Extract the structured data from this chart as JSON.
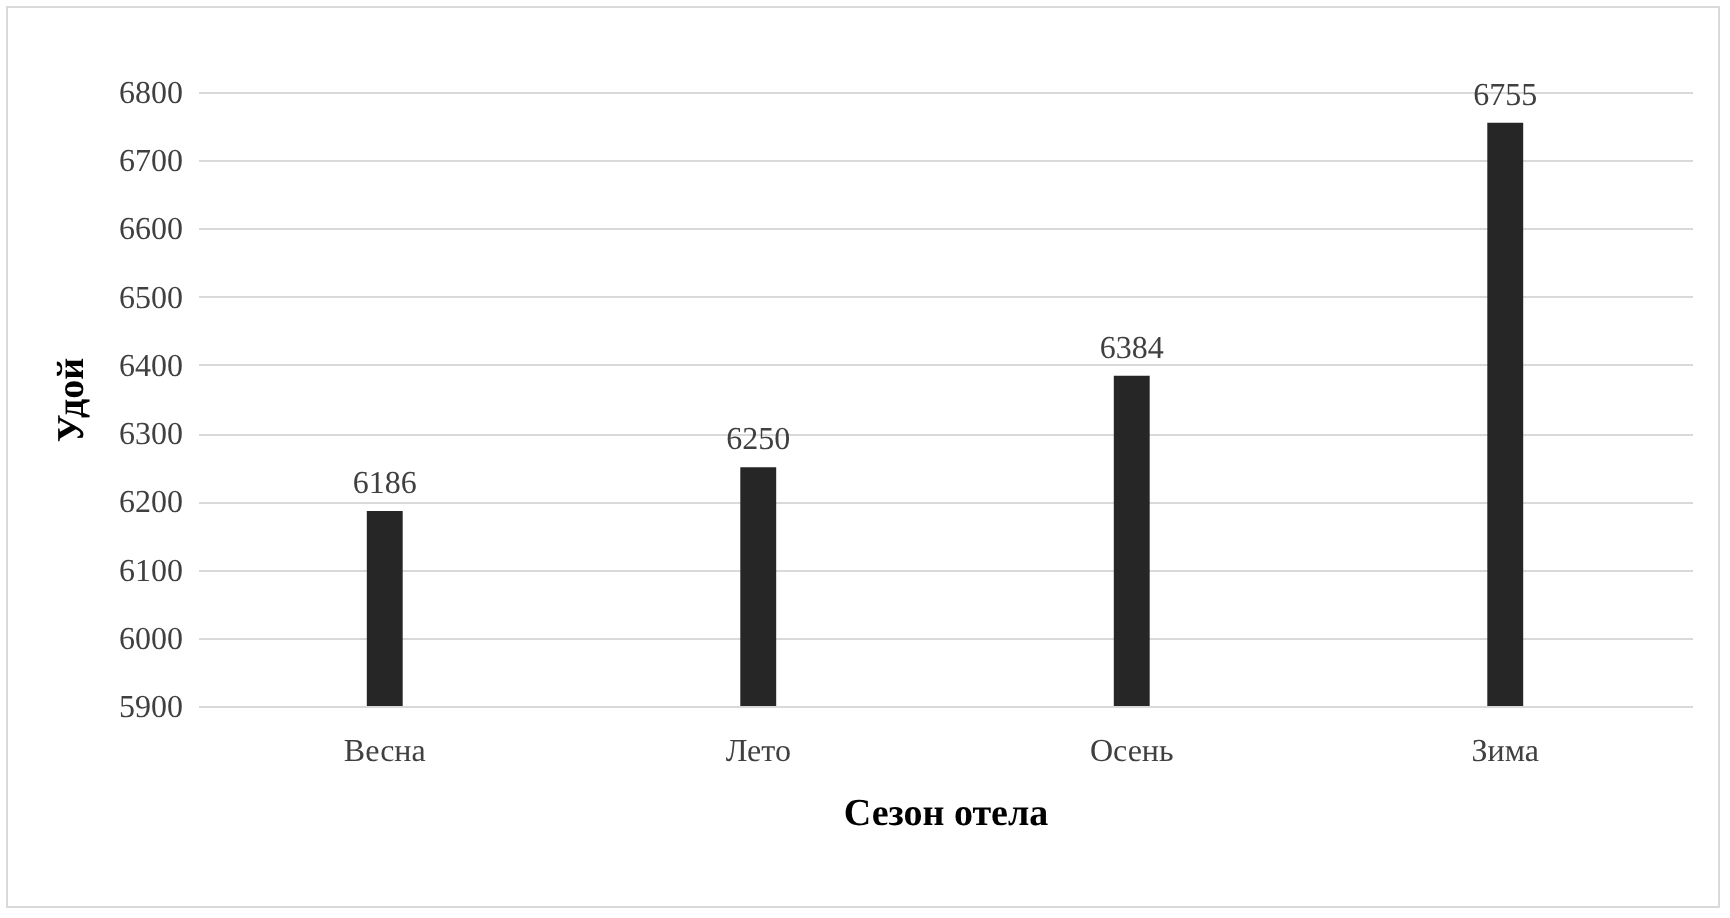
{
  "chart_data": {
    "type": "bar",
    "xlabel": "Сезон отела",
    "ylabel": "Удой",
    "categories": [
      "Весна",
      "Лето",
      "Осень",
      "Зима"
    ],
    "values": [
      6186,
      6250,
      6384,
      6755
    ],
    "color": "#262626",
    "ylim": [
      5900,
      6800
    ],
    "yticks": [
      5900,
      6000,
      6100,
      6200,
      6300,
      6400,
      6500,
      6600,
      6700,
      6800
    ],
    "grid": "y",
    "data_labels": true
  }
}
